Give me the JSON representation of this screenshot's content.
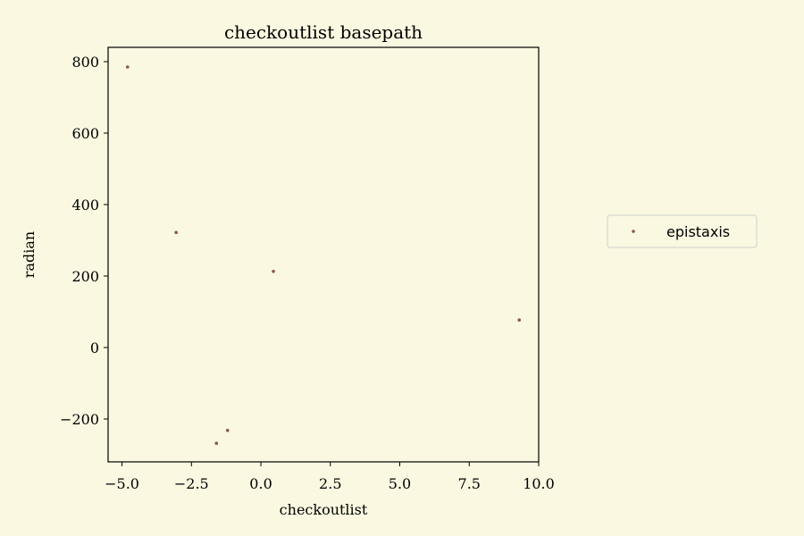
{
  "chart_data": {
    "type": "scatter",
    "title": "checkoutlist basepath",
    "xlabel": "checkoutlist",
    "ylabel": "radian",
    "xlim": [
      -5.5,
      10.0
    ],
    "ylim": [
      -320,
      840
    ],
    "xticks": [
      -5.0,
      -2.5,
      0.0,
      2.5,
      5.0,
      7.5,
      10.0
    ],
    "xtick_labels": [
      "−5.0",
      "−2.5",
      "0.0",
      "2.5",
      "5.0",
      "7.5",
      "10.0"
    ],
    "yticks": [
      -200,
      0,
      200,
      400,
      600,
      800
    ],
    "ytick_labels": [
      "−200",
      "0",
      "200",
      "400",
      "600",
      "800"
    ],
    "grid": false,
    "legend_position": "right",
    "series": [
      {
        "name": "epistaxis",
        "color": "#8c564b",
        "points": [
          {
            "x": -4.8,
            "y": 785
          },
          {
            "x": -3.05,
            "y": 322
          },
          {
            "x": 0.45,
            "y": 213
          },
          {
            "x": 9.3,
            "y": 77
          },
          {
            "x": -1.6,
            "y": -268
          },
          {
            "x": -1.2,
            "y": -232
          }
        ]
      }
    ]
  }
}
